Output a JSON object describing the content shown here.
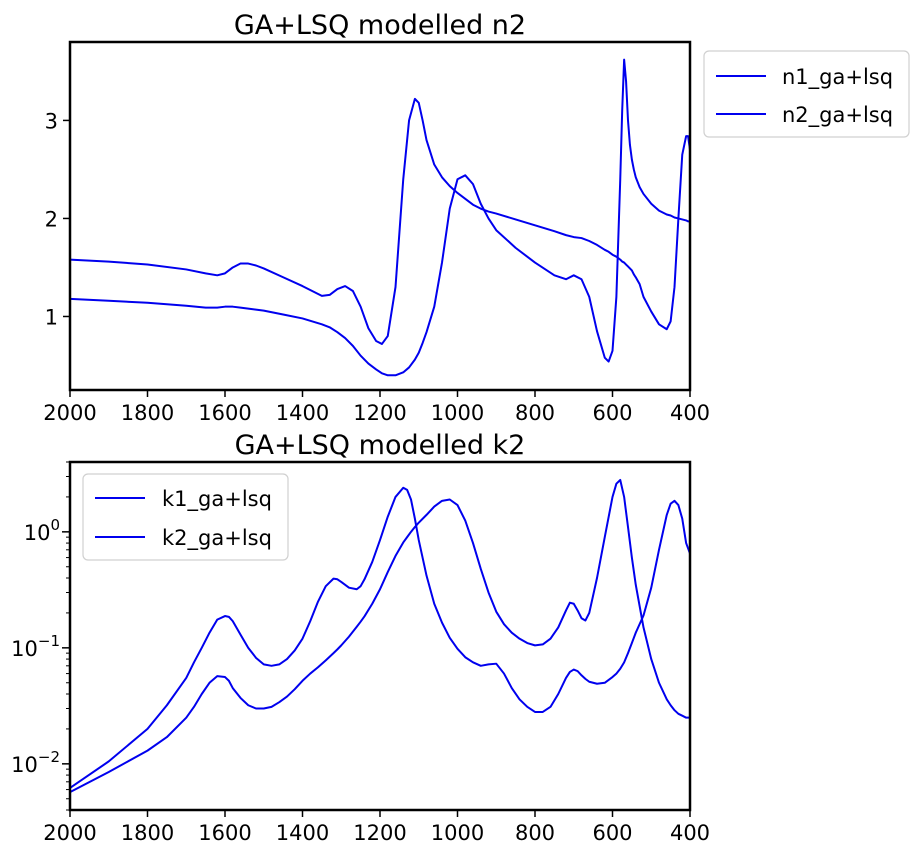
{
  "chart_data": [
    {
      "type": "line",
      "title": "GA+LSQ modelled n2",
      "xlabel": "",
      "ylabel": "",
      "xlim": [
        2000,
        400
      ],
      "ylim": [
        0.25,
        3.8
      ],
      "yscale": "linear",
      "xticks": [
        "2000",
        "1800",
        "1600",
        "1400",
        "1200",
        "1000",
        "800",
        "600",
        "400"
      ],
      "yticks": [
        "1",
        "2",
        "3"
      ],
      "grid": false,
      "legend": "outside-top-right",
      "colors": {
        "line": "#0000ee"
      },
      "x": [
        2000,
        1900,
        1800,
        1700,
        1650,
        1620,
        1600,
        1580,
        1560,
        1540,
        1520,
        1500,
        1450,
        1400,
        1350,
        1330,
        1310,
        1290,
        1270,
        1250,
        1230,
        1210,
        1195,
        1180,
        1160,
        1140,
        1125,
        1110,
        1100,
        1090,
        1080,
        1060,
        1040,
        1020,
        1000,
        980,
        960,
        940,
        920,
        900,
        850,
        800,
        750,
        720,
        700,
        680,
        660,
        640,
        620,
        610,
        600,
        590,
        580,
        575,
        570,
        565,
        560,
        555,
        550,
        545,
        540,
        530,
        520,
        500,
        480,
        460,
        450,
        440,
        430,
        420,
        410,
        405,
        400
      ],
      "series": [
        {
          "name": "n1_ga+lsq",
          "values": [
            1.58,
            1.56,
            1.53,
            1.48,
            1.44,
            1.42,
            1.44,
            1.5,
            1.54,
            1.54,
            1.52,
            1.49,
            1.4,
            1.31,
            1.21,
            1.22,
            1.28,
            1.31,
            1.26,
            1.1,
            0.88,
            0.75,
            0.72,
            0.8,
            1.3,
            2.4,
            3.0,
            3.22,
            3.18,
            3.0,
            2.8,
            2.55,
            2.42,
            2.33,
            2.26,
            2.2,
            2.14,
            2.1,
            2.07,
            2.05,
            1.99,
            1.93,
            1.87,
            1.83,
            1.81,
            1.8,
            1.77,
            1.73,
            1.68,
            1.66,
            1.63,
            1.61,
            1.58,
            1.56,
            1.55,
            1.53,
            1.51,
            1.49,
            1.47,
            1.43,
            1.4,
            1.33,
            1.2,
            1.05,
            0.92,
            0.87,
            0.95,
            1.3,
            2.0,
            2.65,
            2.84,
            2.84,
            2.7
          ]
        },
        {
          "name": "n2_ga+lsq",
          "values": [
            1.18,
            1.16,
            1.14,
            1.11,
            1.09,
            1.09,
            1.1,
            1.1,
            1.09,
            1.08,
            1.07,
            1.06,
            1.02,
            0.98,
            0.92,
            0.89,
            0.84,
            0.78,
            0.7,
            0.6,
            0.52,
            0.46,
            0.42,
            0.4,
            0.4,
            0.43,
            0.48,
            0.56,
            0.63,
            0.73,
            0.84,
            1.1,
            1.55,
            2.1,
            2.4,
            2.44,
            2.35,
            2.15,
            2.0,
            1.88,
            1.7,
            1.55,
            1.42,
            1.38,
            1.42,
            1.38,
            1.2,
            0.85,
            0.58,
            0.54,
            0.65,
            1.2,
            2.4,
            3.1,
            3.62,
            3.4,
            3.0,
            2.75,
            2.6,
            2.5,
            2.42,
            2.32,
            2.25,
            2.15,
            2.08,
            2.04,
            2.03,
            2.01,
            2.0,
            1.99,
            1.98,
            1.97,
            1.97
          ]
        }
      ]
    },
    {
      "type": "line",
      "title": "GA+LSQ modelled k2",
      "xlabel": "",
      "ylabel": "",
      "xlim": [
        2000,
        400
      ],
      "ylim": [
        0.004,
        4.0
      ],
      "yscale": "log",
      "xticks": [
        "2000",
        "1800",
        "1600",
        "1400",
        "1200",
        "1000",
        "800",
        "600",
        "400"
      ],
      "yticks": [
        {
          "base": "10",
          "exp": "0",
          "value": 1
        },
        {
          "base": "10",
          "exp": "−1",
          "value": 0.1
        },
        {
          "base": "10",
          "exp": "−2",
          "value": 0.01
        }
      ],
      "grid": false,
      "legend": "top-left",
      "colors": {
        "line": "#0000ee"
      },
      "x": [
        2000,
        1900,
        1800,
        1750,
        1700,
        1680,
        1660,
        1640,
        1620,
        1600,
        1590,
        1580,
        1560,
        1540,
        1520,
        1500,
        1480,
        1460,
        1440,
        1420,
        1400,
        1380,
        1360,
        1340,
        1320,
        1310,
        1300,
        1280,
        1260,
        1250,
        1240,
        1220,
        1200,
        1180,
        1160,
        1140,
        1130,
        1120,
        1110,
        1100,
        1080,
        1060,
        1040,
        1020,
        1000,
        980,
        960,
        940,
        920,
        900,
        880,
        860,
        840,
        820,
        800,
        780,
        760,
        740,
        720,
        710,
        700,
        690,
        680,
        670,
        660,
        640,
        620,
        600,
        590,
        580,
        570,
        560,
        550,
        540,
        520,
        500,
        480,
        460,
        450,
        440,
        430,
        420,
        410,
        400
      ],
      "series": [
        {
          "name": "k1_ga+lsq",
          "values": [
            0.0062,
            0.0105,
            0.02,
            0.032,
            0.055,
            0.075,
            0.1,
            0.135,
            0.175,
            0.188,
            0.185,
            0.17,
            0.13,
            0.1,
            0.082,
            0.072,
            0.07,
            0.072,
            0.08,
            0.095,
            0.12,
            0.17,
            0.25,
            0.34,
            0.395,
            0.39,
            0.37,
            0.33,
            0.32,
            0.34,
            0.39,
            0.55,
            0.85,
            1.35,
            2.0,
            2.4,
            2.3,
            1.9,
            1.3,
            0.85,
            0.42,
            0.24,
            0.165,
            0.122,
            0.098,
            0.083,
            0.075,
            0.07,
            0.072,
            0.073,
            0.06,
            0.045,
            0.036,
            0.031,
            0.028,
            0.028,
            0.031,
            0.04,
            0.055,
            0.062,
            0.065,
            0.063,
            0.058,
            0.054,
            0.051,
            0.049,
            0.05,
            0.056,
            0.06,
            0.066,
            0.075,
            0.09,
            0.11,
            0.135,
            0.19,
            0.33,
            0.7,
            1.4,
            1.75,
            1.85,
            1.7,
            1.3,
            0.8,
            0.65
          ]
        },
        {
          "name": "k2_ga+lsq",
          "values": [
            0.0057,
            0.0085,
            0.013,
            0.017,
            0.025,
            0.031,
            0.04,
            0.05,
            0.057,
            0.056,
            0.052,
            0.045,
            0.037,
            0.032,
            0.03,
            0.03,
            0.031,
            0.034,
            0.038,
            0.044,
            0.052,
            0.06,
            0.068,
            0.078,
            0.09,
            0.097,
            0.105,
            0.125,
            0.152,
            0.168,
            0.187,
            0.24,
            0.32,
            0.45,
            0.62,
            0.81,
            0.9,
            1.0,
            1.1,
            1.2,
            1.4,
            1.65,
            1.85,
            1.9,
            1.7,
            1.25,
            0.8,
            0.48,
            0.3,
            0.205,
            0.16,
            0.135,
            0.12,
            0.11,
            0.105,
            0.107,
            0.12,
            0.15,
            0.21,
            0.245,
            0.24,
            0.21,
            0.18,
            0.172,
            0.2,
            0.4,
            0.9,
            2.0,
            2.6,
            2.8,
            2.0,
            1.1,
            0.6,
            0.35,
            0.15,
            0.08,
            0.05,
            0.036,
            0.032,
            0.029,
            0.027,
            0.026,
            0.025,
            0.025
          ]
        }
      ]
    }
  ]
}
